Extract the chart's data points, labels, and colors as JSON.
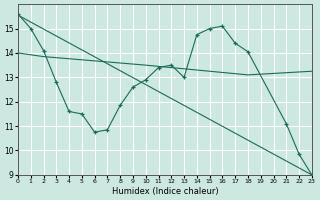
{
  "xlabel": "Humidex (Indice chaleur)",
  "background_color": "#cce8e0",
  "line_color": "#1a6b5a",
  "grid_color": "#ffffff",
  "xlim": [
    0,
    23
  ],
  "ylim": [
    9,
    16
  ],
  "yticks": [
    9,
    10,
    11,
    12,
    13,
    14,
    15
  ],
  "xticks": [
    0,
    1,
    2,
    3,
    4,
    5,
    6,
    7,
    8,
    9,
    10,
    11,
    12,
    13,
    14,
    15,
    16,
    17,
    18,
    19,
    20,
    21,
    22,
    23
  ],
  "series_wavy": {
    "x": [
      0,
      1,
      2,
      3,
      4,
      5,
      6,
      7,
      8,
      9,
      10,
      11,
      12,
      13,
      14,
      15,
      16,
      17,
      18,
      21,
      22,
      23
    ],
    "y": [
      15.6,
      15.0,
      14.1,
      12.8,
      11.6,
      11.5,
      10.75,
      10.85,
      11.85,
      12.6,
      12.9,
      13.4,
      13.5,
      13.0,
      14.75,
      15.0,
      15.1,
      14.4,
      14.05,
      11.1,
      9.85,
      9.0
    ]
  },
  "series_line1": {
    "x": [
      0,
      23
    ],
    "y": [
      15.55,
      9.0
    ]
  },
  "series_line2": {
    "x": [
      0,
      2,
      10,
      13,
      18,
      23
    ],
    "y": [
      14.0,
      13.85,
      13.5,
      13.35,
      13.1,
      13.25
    ]
  }
}
